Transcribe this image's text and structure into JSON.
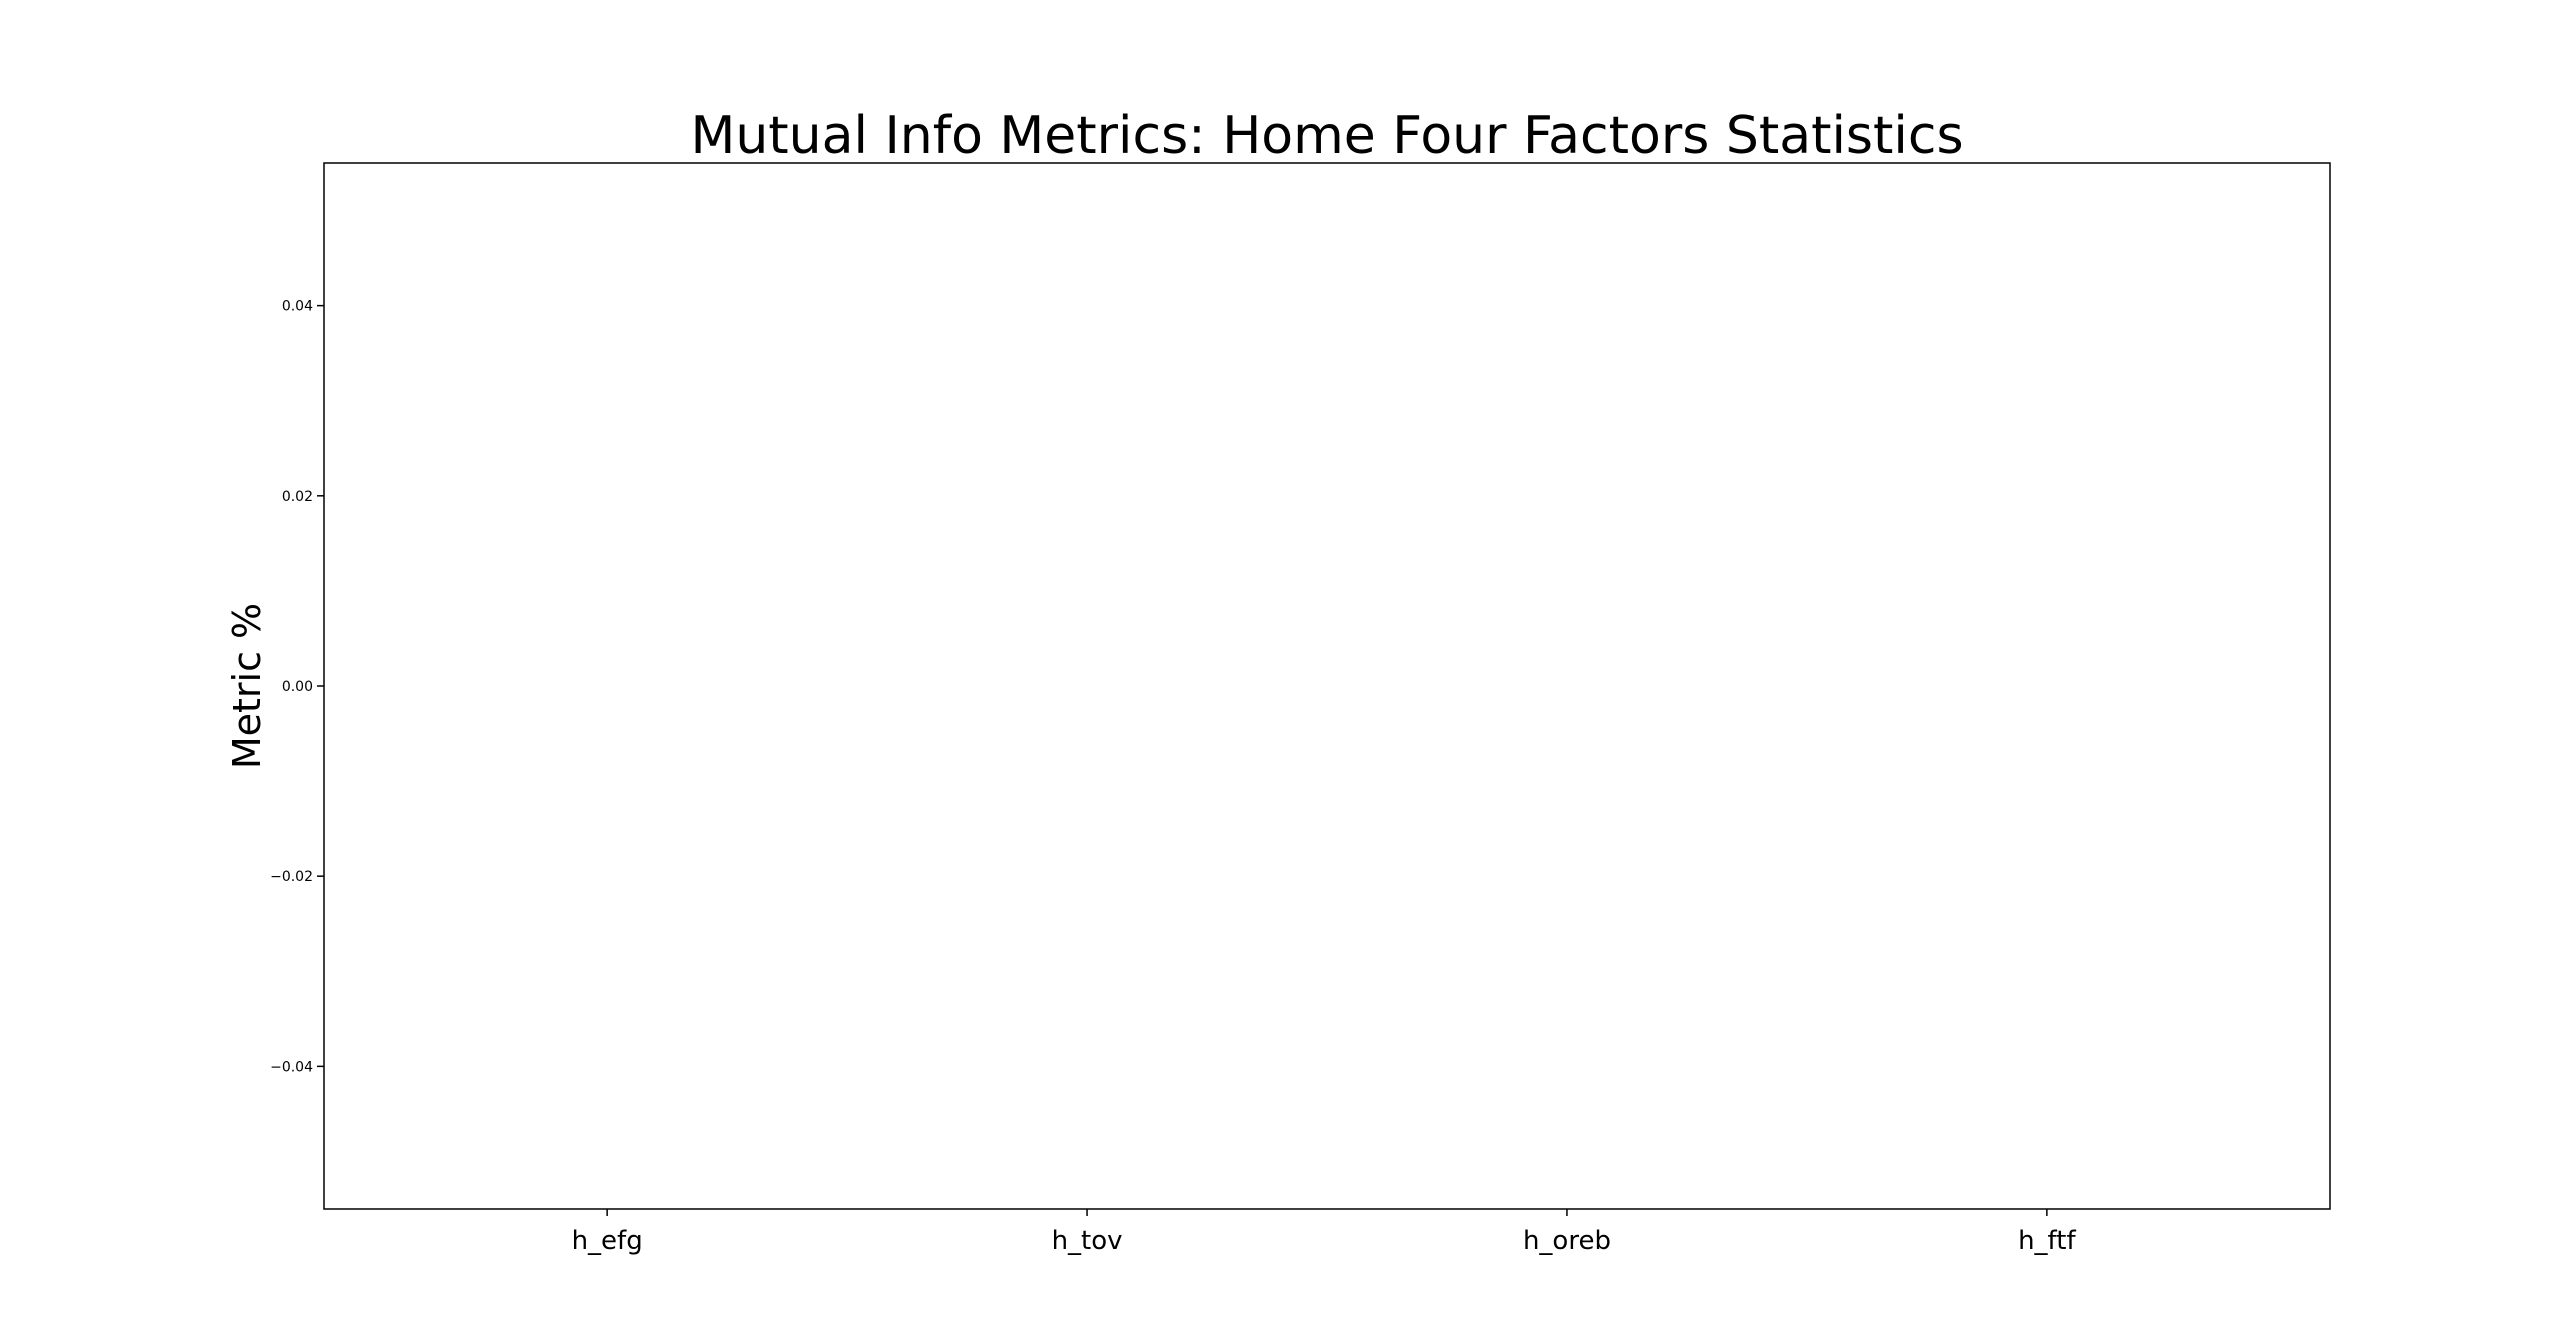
{
  "chart_data": {
    "type": "bar",
    "title": "Mutual Info Metrics: Home Four Factors Statistics",
    "xlabel": "",
    "ylabel": "Metric %",
    "categories": [
      "h_efg",
      "h_tov",
      "h_oreb",
      "h_ftf"
    ],
    "values": [
      0,
      0,
      0,
      0
    ],
    "ylim": [
      -0.055,
      0.055
    ],
    "yticks": [
      0.04,
      0.02,
      0.0,
      -0.02,
      -0.04
    ],
    "ytick_labels": [
      "0.04",
      "0.02",
      "0.00",
      "−0.02",
      "−0.04"
    ],
    "grid": false,
    "legend": "none"
  },
  "colors": {
    "axes": "#000000",
    "bar": "#1f77b4"
  }
}
